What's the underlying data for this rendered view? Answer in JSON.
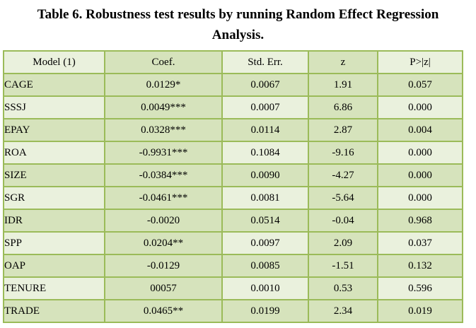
{
  "title": {
    "line1": "Table 6. Robustness test results by running Random Effect Regression",
    "line2": "Analysis."
  },
  "table": {
    "headers": [
      "Model (1)",
      "Coef.",
      "Std. Err.",
      "z",
      "P>|z|"
    ],
    "rows": [
      {
        "model": "CAGE",
        "coef": "0.0129*",
        "std_err": "0.0067",
        "z": "1.91",
        "p": "0.057"
      },
      {
        "model": "SSSJ",
        "coef": "0.0049***",
        "std_err": "0.0007",
        "z": "6.86",
        "p": "0.000"
      },
      {
        "model": "EPAY",
        "coef": "0.0328***",
        "std_err": "0.0114",
        "z": "2.87",
        "p": "0.004"
      },
      {
        "model": "ROA",
        "coef": "-0.9931***",
        "std_err": "0.1084",
        "z": "-9.16",
        "p": "0.000"
      },
      {
        "model": "SIZE",
        "coef": "-0.0384***",
        "std_err": "0.0090",
        "z": "-4.27",
        "p": "0.000"
      },
      {
        "model": "SGR",
        "coef": "-0.0461***",
        "std_err": "0.0081",
        "z": "-5.64",
        "p": "0.000"
      },
      {
        "model": "IDR",
        "coef": "-0.0020",
        "std_err": "0.0514",
        "z": "-0.04",
        "p": "0.968"
      },
      {
        "model": "SPP",
        "coef": "0.0204**",
        "std_err": "0.0097",
        "z": "2.09",
        "p": "0.037"
      },
      {
        "model": "OAP",
        "coef": "-0.0129",
        "std_err": "0.0085",
        "z": "-1.51",
        "p": "0.132"
      },
      {
        "model": "TENURE",
        "coef": "00057",
        "std_err": "0.0010",
        "z": "0.53",
        "p": "0.596"
      },
      {
        "model": "TRADE",
        "coef": "0.0465**",
        "std_err": "0.0199",
        "z": "2.34",
        "p": "0.019"
      }
    ]
  },
  "colors": {
    "cell_light": "#EAF1DD",
    "cell_dark": "#D6E3BC",
    "border": "#9BBB59",
    "text": "#000000"
  }
}
